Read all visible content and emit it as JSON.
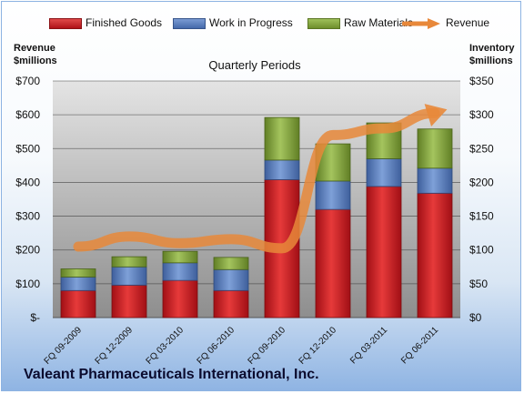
{
  "legend": {
    "finished": "Finished Goods",
    "wip": "Work in Progress",
    "raw": "Raw Materials",
    "revenue": "Revenue"
  },
  "axis_left_title": [
    "Revenue",
    "$millions"
  ],
  "axis_right_title": [
    "Inventory",
    "$millions"
  ],
  "company": "Valeant Pharmaceuticals International, Inc.",
  "colors": {
    "finished": "#c0161c",
    "wip": "#4f74b5",
    "raw": "#7ea135",
    "revenue": "#e8883a"
  },
  "chart_data": {
    "type": "bar",
    "stacked": true,
    "title": "Quarterly Periods",
    "categories": [
      "FQ 09-2009",
      "FQ 12-2009",
      "FQ 03-2010",
      "FQ 06-2010",
      "FQ 09-2010",
      "FQ 12-2010",
      "FQ 03-2011",
      "FQ 06-2011"
    ],
    "series": [
      {
        "name": "Finished Goods",
        "axis": "right",
        "values": [
          40,
          48,
          55,
          40,
          204,
          160,
          194,
          184
        ]
      },
      {
        "name": "Work in Progress",
        "axis": "right",
        "values": [
          20,
          27,
          26,
          31,
          29,
          42,
          41,
          37
        ]
      },
      {
        "name": "Raw Materials",
        "axis": "right",
        "values": [
          12,
          15,
          17,
          18,
          63,
          55,
          53,
          58
        ]
      },
      {
        "name": "Revenue",
        "type": "line",
        "axis": "left",
        "values": [
          210,
          240,
          220,
          232,
          205,
          540,
          560,
          605
        ]
      }
    ],
    "y_left": {
      "label": "Revenue $millions",
      "min": 0,
      "max": 700,
      "ticks": [
        "$-",
        "$100",
        "$200",
        "$300",
        "$400",
        "$500",
        "$600",
        "$700"
      ]
    },
    "y_right": {
      "label": "Inventory $millions",
      "min": 0,
      "max": 350,
      "ticks": [
        "$0",
        "$50",
        "$100",
        "$150",
        "$200",
        "$250",
        "$300",
        "$350"
      ]
    },
    "grid": true,
    "legend_position": "top"
  }
}
